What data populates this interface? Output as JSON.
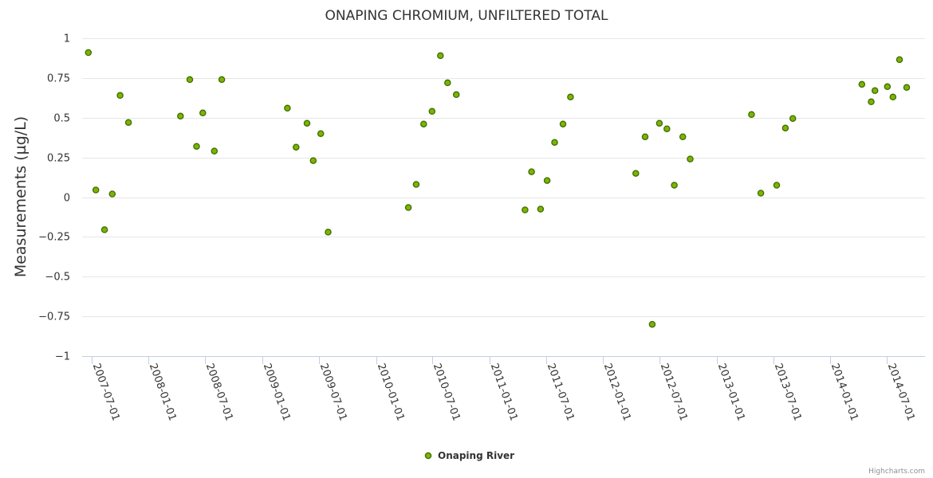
{
  "chart_data": {
    "type": "scatter",
    "title": "ONAPING CHROMIUM, UNFILTERED TOTAL",
    "ylabel": "Measurements (µg/L)",
    "xlabel": "",
    "ylim": [
      -1,
      1
    ],
    "xlim": [
      "2007-06-01",
      "2014-11-01"
    ],
    "y_ticks": [
      "−1",
      "−0.75",
      "−0.5",
      "−0.25",
      "0",
      "0.25",
      "0.5",
      "0.75",
      "1"
    ],
    "y_tick_values": [
      -1,
      -0.75,
      -0.5,
      -0.25,
      0,
      0.25,
      0.5,
      0.75,
      1
    ],
    "x_ticks": [
      "2007-07-01",
      "2008-01-01",
      "2008-07-01",
      "2009-01-01",
      "2009-07-01",
      "2010-01-01",
      "2010-07-01",
      "2011-01-01",
      "2011-07-01",
      "2012-01-01",
      "2012-07-01",
      "2013-01-01",
      "2013-07-01",
      "2014-01-01",
      "2014-07-01"
    ],
    "grid": true,
    "legend_position": "bottom-center",
    "marker_color": "#7cb500",
    "marker_stroke": "#3e6b00",
    "series": [
      {
        "name": "Onaping River",
        "points": [
          {
            "x": "2007-06-21",
            "y": 0.91
          },
          {
            "x": "2007-07-15",
            "y": 0.045
          },
          {
            "x": "2007-08-12",
            "y": -0.205
          },
          {
            "x": "2007-09-06",
            "y": 0.02
          },
          {
            "x": "2007-10-01",
            "y": 0.64
          },
          {
            "x": "2007-10-28",
            "y": 0.47
          },
          {
            "x": "2008-04-12",
            "y": 0.51
          },
          {
            "x": "2008-05-12",
            "y": 0.74
          },
          {
            "x": "2008-06-03",
            "y": 0.32
          },
          {
            "x": "2008-06-23",
            "y": 0.53
          },
          {
            "x": "2008-07-30",
            "y": 0.29
          },
          {
            "x": "2008-08-23",
            "y": 0.74
          },
          {
            "x": "2009-03-22",
            "y": 0.56
          },
          {
            "x": "2009-04-19",
            "y": 0.315
          },
          {
            "x": "2009-05-24",
            "y": 0.465
          },
          {
            "x": "2009-06-13",
            "y": 0.23
          },
          {
            "x": "2009-07-07",
            "y": 0.4
          },
          {
            "x": "2009-07-31",
            "y": -0.22
          },
          {
            "x": "2010-04-15",
            "y": -0.065
          },
          {
            "x": "2010-05-10",
            "y": 0.08
          },
          {
            "x": "2010-06-03",
            "y": 0.46
          },
          {
            "x": "2010-06-30",
            "y": 0.54
          },
          {
            "x": "2010-07-27",
            "y": 0.89
          },
          {
            "x": "2010-08-19",
            "y": 0.72
          },
          {
            "x": "2010-09-16",
            "y": 0.645
          },
          {
            "x": "2011-04-25",
            "y": -0.08
          },
          {
            "x": "2011-05-16",
            "y": 0.16
          },
          {
            "x": "2011-06-14",
            "y": -0.075
          },
          {
            "x": "2011-07-05",
            "y": 0.105
          },
          {
            "x": "2011-07-29",
            "y": 0.345
          },
          {
            "x": "2011-08-25",
            "y": 0.46
          },
          {
            "x": "2011-09-18",
            "y": 0.63
          },
          {
            "x": "2012-04-15",
            "y": 0.15
          },
          {
            "x": "2012-05-15",
            "y": 0.38
          },
          {
            "x": "2012-06-07",
            "y": -0.8
          },
          {
            "x": "2012-06-30",
            "y": 0.465
          },
          {
            "x": "2012-07-24",
            "y": 0.43
          },
          {
            "x": "2012-08-17",
            "y": 0.075
          },
          {
            "x": "2012-09-13",
            "y": 0.38
          },
          {
            "x": "2012-10-07",
            "y": 0.24
          },
          {
            "x": "2013-04-22",
            "y": 0.52
          },
          {
            "x": "2013-05-22",
            "y": 0.025
          },
          {
            "x": "2013-07-12",
            "y": 0.075
          },
          {
            "x": "2013-08-09",
            "y": 0.435
          },
          {
            "x": "2013-09-02",
            "y": 0.495
          },
          {
            "x": "2014-04-12",
            "y": 0.71
          },
          {
            "x": "2014-05-12",
            "y": 0.6
          },
          {
            "x": "2014-05-24",
            "y": 0.67
          },
          {
            "x": "2014-07-03",
            "y": 0.695
          },
          {
            "x": "2014-07-21",
            "y": 0.63
          },
          {
            "x": "2014-08-11",
            "y": 0.865
          },
          {
            "x": "2014-09-03",
            "y": 0.69
          }
        ]
      }
    ]
  },
  "legend": {
    "label": "Onaping River"
  },
  "credits": {
    "text": "Highcharts.com"
  }
}
